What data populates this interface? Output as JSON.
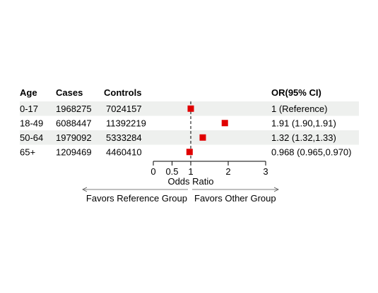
{
  "chart_data": {
    "type": "forest",
    "columns": [
      "Age",
      "Cases",
      "Controls",
      "OR(95% CI)"
    ],
    "rows": [
      {
        "age": "0-17",
        "cases": "1968275",
        "controls": "7024157",
        "or_text": "1 (Reference)",
        "or": 1.0,
        "ci_low": 1.0,
        "ci_high": 1.0
      },
      {
        "age": "18-49",
        "cases": "6088447",
        "controls": "11392219",
        "or_text": "1.91 (1.90,1.91)",
        "or": 1.91,
        "ci_low": 1.9,
        "ci_high": 1.91
      },
      {
        "age": "50-64",
        "cases": "1979092",
        "controls": "5333284",
        "or_text": "1.32 (1.32,1.33)",
        "or": 1.32,
        "ci_low": 1.32,
        "ci_high": 1.33
      },
      {
        "age": "65+",
        "cases": "1209469",
        "controls": "4460410",
        "or_text": "0.968 (0.965,0.970)",
        "or": 0.968,
        "ci_low": 0.965,
        "ci_high": 0.97
      }
    ],
    "xlim": [
      0,
      3
    ],
    "x_ticks": [
      0,
      0.5,
      1,
      2,
      3
    ],
    "x_tick_labels": [
      "0",
      "0.5",
      "1",
      "2",
      "3"
    ],
    "reference_line": 1,
    "xlabel": "Odds Ratio",
    "left_arrow_label": "Favors Reference Group",
    "right_arrow_label": "Favors Other Group",
    "marker_color": "#e00000",
    "stripe_color": "#eef0ee"
  }
}
